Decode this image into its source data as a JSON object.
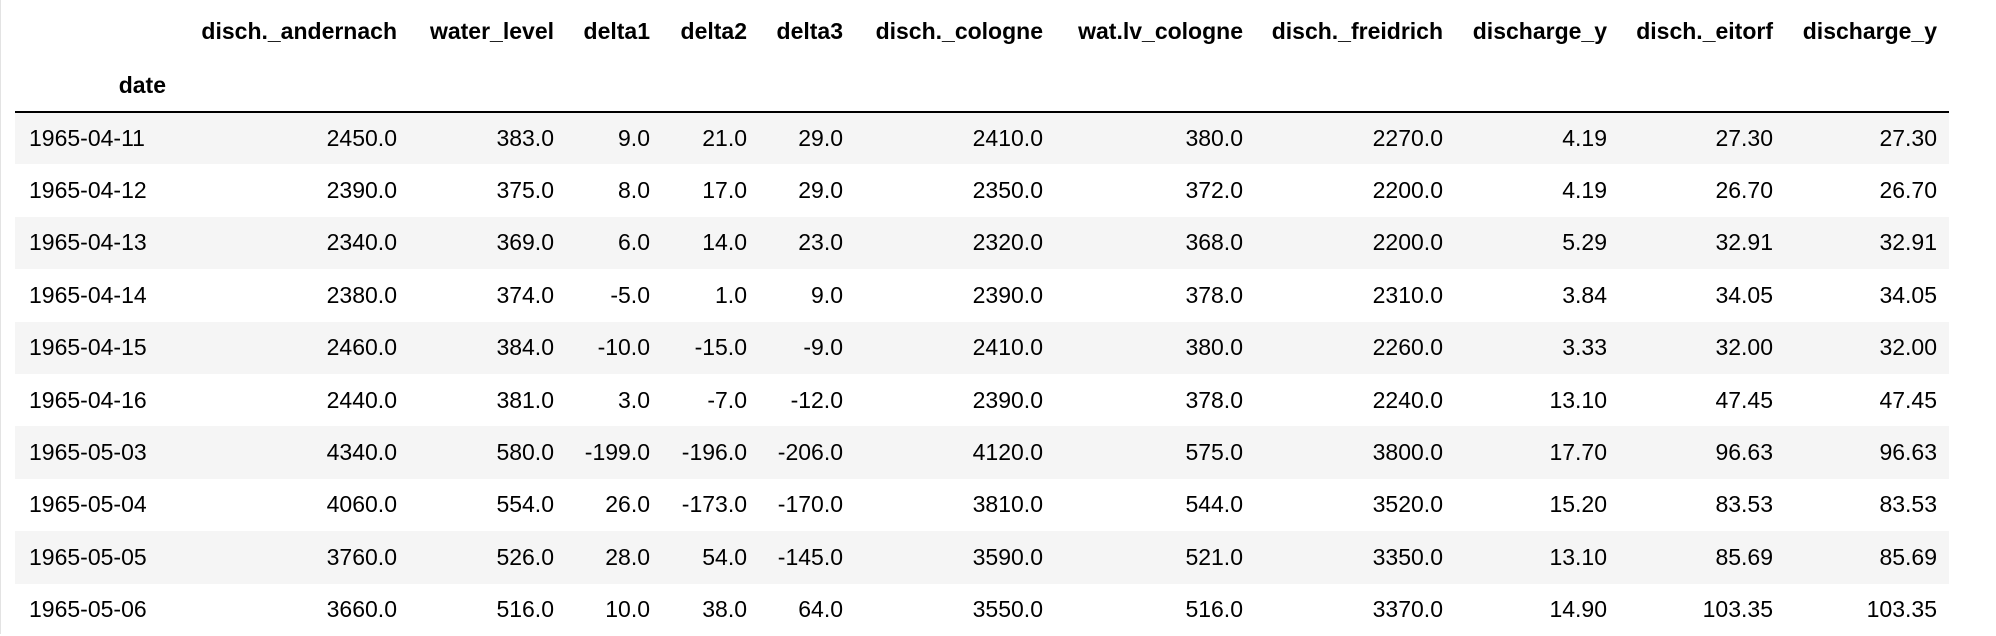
{
  "table": {
    "index_name": "date",
    "columns": [
      "disch._andernach",
      "water_level",
      "delta1",
      "delta2",
      "delta3",
      "disch._cologne",
      "wat.lv_cologne",
      "disch._freidrich",
      "discharge_y",
      "disch._eitorf",
      "discharge_y"
    ],
    "rows": [
      {
        "date": "1965-04-11",
        "cells": [
          "2450.0",
          "383.0",
          "9.0",
          "21.0",
          "29.0",
          "2410.0",
          "380.0",
          "2270.0",
          "4.19",
          "27.30",
          "27.30"
        ]
      },
      {
        "date": "1965-04-12",
        "cells": [
          "2390.0",
          "375.0",
          "8.0",
          "17.0",
          "29.0",
          "2350.0",
          "372.0",
          "2200.0",
          "4.19",
          "26.70",
          "26.70"
        ]
      },
      {
        "date": "1965-04-13",
        "cells": [
          "2340.0",
          "369.0",
          "6.0",
          "14.0",
          "23.0",
          "2320.0",
          "368.0",
          "2200.0",
          "5.29",
          "32.91",
          "32.91"
        ]
      },
      {
        "date": "1965-04-14",
        "cells": [
          "2380.0",
          "374.0",
          "-5.0",
          "1.0",
          "9.0",
          "2390.0",
          "378.0",
          "2310.0",
          "3.84",
          "34.05",
          "34.05"
        ]
      },
      {
        "date": "1965-04-15",
        "cells": [
          "2460.0",
          "384.0",
          "-10.0",
          "-15.0",
          "-9.0",
          "2410.0",
          "380.0",
          "2260.0",
          "3.33",
          "32.00",
          "32.00"
        ]
      },
      {
        "date": "1965-04-16",
        "cells": [
          "2440.0",
          "381.0",
          "3.0",
          "-7.0",
          "-12.0",
          "2390.0",
          "378.0",
          "2240.0",
          "13.10",
          "47.45",
          "47.45"
        ]
      },
      {
        "date": "1965-05-03",
        "cells": [
          "4340.0",
          "580.0",
          "-199.0",
          "-196.0",
          "-206.0",
          "4120.0",
          "575.0",
          "3800.0",
          "17.70",
          "96.63",
          "96.63"
        ]
      },
      {
        "date": "1965-05-04",
        "cells": [
          "4060.0",
          "554.0",
          "26.0",
          "-173.0",
          "-170.0",
          "3810.0",
          "544.0",
          "3520.0",
          "15.20",
          "83.53",
          "83.53"
        ]
      },
      {
        "date": "1965-05-05",
        "cells": [
          "3760.0",
          "526.0",
          "28.0",
          "54.0",
          "-145.0",
          "3590.0",
          "521.0",
          "3350.0",
          "13.10",
          "85.69",
          "85.69"
        ]
      },
      {
        "date": "1965-05-06",
        "cells": [
          "3660.0",
          "516.0",
          "10.0",
          "38.0",
          "64.0",
          "3550.0",
          "516.0",
          "3370.0",
          "14.90",
          "103.35",
          "103.35"
        ]
      }
    ]
  },
  "colors": {
    "stripe": "#f5f5f5",
    "header_rule": "#000000",
    "left_rule": "#e3e3e3"
  }
}
